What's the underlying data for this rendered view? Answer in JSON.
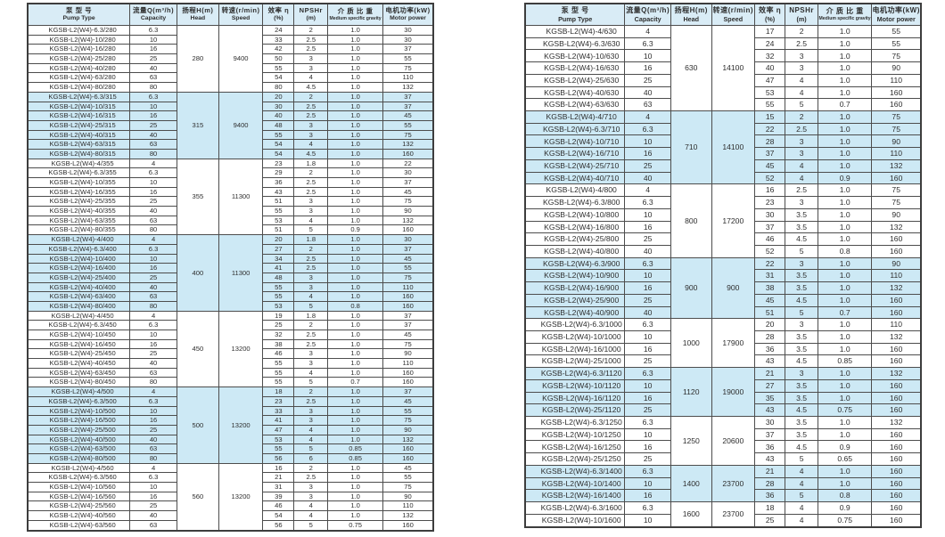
{
  "page": {
    "background": "#ffffff"
  },
  "colors": {
    "band_blue": "#cde9f5",
    "header_bg": "#d9ecf6",
    "border": "#4d4d4d",
    "text": "#2e2e2e"
  },
  "columns": [
    {
      "key": "pump_type",
      "zh": "泵 型 号",
      "en": "Pump Type"
    },
    {
      "key": "capacity",
      "zh": "流量Q(m³/h)",
      "en": "Capacity"
    },
    {
      "key": "head",
      "zh": "扬程H(m)",
      "en": "Head"
    },
    {
      "key": "speed",
      "zh": "转速(r/min)",
      "en": "Speed"
    },
    {
      "key": "efficiency",
      "zh": "效率 η",
      "en": "(%)"
    },
    {
      "key": "npshr",
      "zh": "NPSHr",
      "en": "(m)"
    },
    {
      "key": "gravity",
      "zh": "介 质 比 重",
      "en": "Medium specific gravity"
    },
    {
      "key": "power",
      "zh": "电机功率(kW)",
      "en": "Motor power"
    }
  ],
  "tables": [
    {
      "name": "left",
      "groups": [
        {
          "head": "280",
          "speed": "9400",
          "shaded": false,
          "rows": [
            [
              "KGSB-L2(W4)-6.3/280",
              "6.3",
              "24",
              "2",
              "1.0",
              "30"
            ],
            [
              "KGSB-L2(W4)-10/280",
              "10",
              "33",
              "2.5",
              "1.0",
              "30"
            ],
            [
              "KGSB-L2(W4)-16/280",
              "16",
              "42",
              "2.5",
              "1.0",
              "37"
            ],
            [
              "KGSB-L2(W4)-25/280",
              "25",
              "50",
              "3",
              "1.0",
              "55"
            ],
            [
              "KGSB-L2(W4)-40/280",
              "40",
              "55",
              "3",
              "1.0",
              "75"
            ],
            [
              "KGSB-L2(W4)-63/280",
              "63",
              "54",
              "4",
              "1.0",
              "110"
            ],
            [
              "KGSB-L2(W4)-80/280",
              "80",
              "80",
              "4.5",
              "1.0",
              "132"
            ]
          ]
        },
        {
          "head": "315",
          "speed": "9400",
          "shaded": true,
          "rows": [
            [
              "KGSB-L2(W4)-6.3/315",
              "6.3",
              "20",
              "2",
              "1.0",
              "37"
            ],
            [
              "KGSB-L2(W4)-10/315",
              "10",
              "30",
              "2.5",
              "1.0",
              "37"
            ],
            [
              "KGSB-L2(W4)-16/315",
              "16",
              "40",
              "2.5",
              "1.0",
              "45"
            ],
            [
              "KGSB-L2(W4)-25/315",
              "25",
              "48",
              "3",
              "1.0",
              "55"
            ],
            [
              "KGSB-L2(W4)-40/315",
              "40",
              "55",
              "3",
              "1.0",
              "75"
            ],
            [
              "KGSB-L2(W4)-63/315",
              "63",
              "54",
              "4",
              "1.0",
              "132"
            ],
            [
              "KGSB-L2(W4)-80/315",
              "80",
              "54",
              "4.5",
              "1.0",
              "160"
            ]
          ]
        },
        {
          "head": "355",
          "speed": "11300",
          "shaded": false,
          "rows": [
            [
              "KGSB-L2(W4)-4/355",
              "4",
              "23",
              "1.8",
              "1.0",
              "22"
            ],
            [
              "KGSB-L2(W4)-6.3/355",
              "6.3",
              "29",
              "2",
              "1.0",
              "30"
            ],
            [
              "KGSB-L2(W4)-10/355",
              "10",
              "36",
              "2.5",
              "1.0",
              "37"
            ],
            [
              "KGSB-L2(W4)-16/355",
              "16",
              "43",
              "2.5",
              "1.0",
              "45"
            ],
            [
              "KGSB-L2(W4)-25/355",
              "25",
              "51",
              "3",
              "1.0",
              "75"
            ],
            [
              "KGSB-L2(W4)-40/355",
              "40",
              "55",
              "3",
              "1.0",
              "90"
            ],
            [
              "KGSB-L2(W4)-63/355",
              "63",
              "53",
              "4",
              "1.0",
              "132"
            ],
            [
              "KGSB-L2(W4)-80/355",
              "80",
              "51",
              "5",
              "0.9",
              "160"
            ]
          ]
        },
        {
          "head": "400",
          "speed": "11300",
          "shaded": true,
          "rows": [
            [
              "KGSB-L2(W4)-4/400",
              "4",
              "20",
              "1.8",
              "1.0",
              "30"
            ],
            [
              "KGSB-L2(W4)-6.3/400",
              "6.3",
              "27",
              "2",
              "1.0",
              "37"
            ],
            [
              "KGSB-L2(W4)-10/400",
              "10",
              "34",
              "2.5",
              "1.0",
              "45"
            ],
            [
              "KGSB-L2(W4)-16/400",
              "16",
              "41",
              "2.5",
              "1.0",
              "55"
            ],
            [
              "KGSB-L2(W4)-25/400",
              "25",
              "48",
              "3",
              "1.0",
              "75"
            ],
            [
              "KGSB-L2(W4)-40/400",
              "40",
              "55",
              "3",
              "1.0",
              "110"
            ],
            [
              "KGSB-L2(W4)-63/400",
              "63",
              "55",
              "4",
              "1.0",
              "160"
            ],
            [
              "KGSB-L2(W4)-80/400",
              "80",
              "53",
              "5",
              "0.8",
              "160"
            ]
          ]
        },
        {
          "head": "450",
          "speed": "13200",
          "shaded": false,
          "rows": [
            [
              "KGSB-L2(W4)-4/450",
              "4",
              "19",
              "1.8",
              "1.0",
              "37"
            ],
            [
              "KGSB-L2(W4)-6.3/450",
              "6.3",
              "25",
              "2",
              "1.0",
              "37"
            ],
            [
              "KGSB-L2(W4)-10/450",
              "10",
              "32",
              "2.5",
              "1.0",
              "45"
            ],
            [
              "KGSB-L2(W4)-16/450",
              "16",
              "38",
              "2.5",
              "1.0",
              "75"
            ],
            [
              "KGSB-L2(W4)-25/450",
              "25",
              "46",
              "3",
              "1.0",
              "90"
            ],
            [
              "KGSB-L2(W4)-40/450",
              "40",
              "55",
              "3",
              "1.0",
              "110"
            ],
            [
              "KGSB-L2(W4)-63/450",
              "63",
              "55",
              "4",
              "1.0",
              "160"
            ],
            [
              "KGSB-L2(W4)-80/450",
              "80",
              "55",
              "5",
              "0.7",
              "160"
            ]
          ]
        },
        {
          "head": "500",
          "speed": "13200",
          "shaded": true,
          "rows": [
            [
              "KGSB-L2(W4)-4/500",
              "4",
              "18",
              "2",
              "1.0",
              "37"
            ],
            [
              "KGSB-L2(W4)-6.3/500",
              "6.3",
              "23",
              "2.5",
              "1.0",
              "45"
            ],
            [
              "KGSB-L2(W4)-10/500",
              "10",
              "33",
              "3",
              "1.0",
              "55"
            ],
            [
              "KGSB-L2(W4)-16/500",
              "16",
              "41",
              "3",
              "1.0",
              "75"
            ],
            [
              "KGSB-L2(W4)-25/500",
              "25",
              "47",
              "4",
              "1.0",
              "90"
            ],
            [
              "KGSB-L2(W4)-40/500",
              "40",
              "53",
              "4",
              "1.0",
              "132"
            ],
            [
              "KGSB-L2(W4)-63/500",
              "63",
              "55",
              "5",
              "0.85",
              "160"
            ],
            [
              "KGSB-L2(W4)-80/500",
              "80",
              "56",
              "6",
              "0.85",
              "160"
            ]
          ]
        },
        {
          "head": "560",
          "speed": "13200",
          "shaded": false,
          "rows": [
            [
              "KGSB-L2(W4)-4/560",
              "4",
              "16",
              "2",
              "1.0",
              "45"
            ],
            [
              "KGSB-L2(W4)-6.3/560",
              "6.3",
              "21",
              "2.5",
              "1.0",
              "55"
            ],
            [
              "KGSB-L2(W4)-10/560",
              "10",
              "31",
              "3",
              "1.0",
              "75"
            ],
            [
              "KGSB-L2(W4)-16/560",
              "16",
              "39",
              "3",
              "1.0",
              "90"
            ],
            [
              "KGSB-L2(W4)-25/560",
              "25",
              "46",
              "4",
              "1.0",
              "110"
            ],
            [
              "KGSB-L2(W4)-40/560",
              "40",
              "54",
              "4",
              "1.0",
              "132"
            ],
            [
              "KGSB-L2(W4)-63/560",
              "63",
              "56",
              "5",
              "0.75",
              "160"
            ]
          ]
        }
      ]
    },
    {
      "name": "right",
      "groups": [
        {
          "head": "630",
          "speed": "14100",
          "shaded": false,
          "rows": [
            [
              "KGSB-L2(W4)-4/630",
              "4",
              "17",
              "2",
              "1.0",
              "55"
            ],
            [
              "KGSB-L2(W4)-6.3/630",
              "6.3",
              "24",
              "2.5",
              "1.0",
              "55"
            ],
            [
              "KGSB-L2(W4)-10/630",
              "10",
              "32",
              "3",
              "1.0",
              "75"
            ],
            [
              "KGSB-L2(W4)-16/630",
              "16",
              "40",
              "3",
              "1.0",
              "90"
            ],
            [
              "KGSB-L2(W4)-25/630",
              "25",
              "47",
              "4",
              "1.0",
              "110"
            ],
            [
              "KGSB-L2(W4)-40/630",
              "40",
              "53",
              "4",
              "1.0",
              "160"
            ],
            [
              "KGSB-L2(W4)-63/630",
              "63",
              "55",
              "5",
              "0.7",
              "160"
            ]
          ]
        },
        {
          "head": "710",
          "speed": "14100",
          "shaded": true,
          "rows": [
            [
              "KGSB-L2(W4)-4/710",
              "4",
              "15",
              "2",
              "1.0",
              "75"
            ],
            [
              "KGSB-L2(W4)-6.3/710",
              "6.3",
              "22",
              "2.5",
              "1.0",
              "75"
            ],
            [
              "KGSB-L2(W4)-10/710",
              "10",
              "28",
              "3",
              "1.0",
              "90"
            ],
            [
              "KGSB-L2(W4)-16/710",
              "16",
              "37",
              "3",
              "1.0",
              "110"
            ],
            [
              "KGSB-L2(W4)-25/710",
              "25",
              "45",
              "4",
              "1.0",
              "132"
            ],
            [
              "KGSB-L2(W4)-40/710",
              "40",
              "52",
              "4",
              "0.9",
              "160"
            ]
          ]
        },
        {
          "head": "800",
          "speed": "17200",
          "shaded": false,
          "rows": [
            [
              "KGSB-L2(W4)-4/800",
              "4",
              "16",
              "2.5",
              "1.0",
              "75"
            ],
            [
              "KGSB-L2(W4)-6.3/800",
              "6.3",
              "23",
              "3",
              "1.0",
              "75"
            ],
            [
              "KGSB-L2(W4)-10/800",
              "10",
              "30",
              "3.5",
              "1.0",
              "90"
            ],
            [
              "KGSB-L2(W4)-16/800",
              "16",
              "37",
              "3.5",
              "1.0",
              "132"
            ],
            [
              "KGSB-L2(W4)-25/800",
              "25",
              "46",
              "4.5",
              "1.0",
              "160"
            ],
            [
              "KGSB-L2(W4)-40/800",
              "40",
              "52",
              "5",
              "0.8",
              "160"
            ]
          ]
        },
        {
          "head": "900",
          "speed": "900",
          "shaded": true,
          "rows": [
            [
              "KGSB-L2(W4)-6.3/900",
              "6.3",
              "22",
              "3",
              "1.0",
              "90"
            ],
            [
              "KGSB-L2(W4)-10/900",
              "10",
              "31",
              "3.5",
              "1.0",
              "110"
            ],
            [
              "KGSB-L2(W4)-16/900",
              "16",
              "38",
              "3.5",
              "1.0",
              "132"
            ],
            [
              "KGSB-L2(W4)-25/900",
              "25",
              "45",
              "4.5",
              "1.0",
              "160"
            ],
            [
              "KGSB-L2(W4)-40/900",
              "40",
              "51",
              "5",
              "0.7",
              "160"
            ]
          ]
        },
        {
          "head": "1000",
          "speed": "17900",
          "shaded": false,
          "rows": [
            [
              "KGSB-L2(W4)-6.3/1000",
              "6.3",
              "20",
              "3",
              "1.0",
              "110"
            ],
            [
              "KGSB-L2(W4)-10/1000",
              "10",
              "28",
              "3.5",
              "1.0",
              "132"
            ],
            [
              "KGSB-L2(W4)-16/1000",
              "16",
              "36",
              "3.5",
              "1.0",
              "160"
            ],
            [
              "KGSB-L2(W4)-25/1000",
              "25",
              "43",
              "4.5",
              "0.85",
              "160"
            ]
          ]
        },
        {
          "head": "1120",
          "speed": "19000",
          "shaded": true,
          "rows": [
            [
              "KGSB-L2(W4)-6.3/1120",
              "6.3",
              "21",
              "3",
              "1.0",
              "132"
            ],
            [
              "KGSB-L2(W4)-10/1120",
              "10",
              "27",
              "3.5",
              "1.0",
              "160"
            ],
            [
              "KGSB-L2(W4)-16/1120",
              "16",
              "35",
              "3.5",
              "1.0",
              "160"
            ],
            [
              "KGSB-L2(W4)-25/1120",
              "25",
              "43",
              "4.5",
              "0.75",
              "160"
            ]
          ]
        },
        {
          "head": "1250",
          "speed": "20600",
          "shaded": false,
          "rows": [
            [
              "KGSB-L2(W4)-6.3/1250",
              "6.3",
              "30",
              "3.5",
              "1.0",
              "132"
            ],
            [
              "KGSB-L2(W4)-10/1250",
              "10",
              "37",
              "3.5",
              "1.0",
              "160"
            ],
            [
              "KGSB-L2(W4)-16/1250",
              "16",
              "36",
              "4.5",
              "0.9",
              "160"
            ],
            [
              "KGSB-L2(W4)-25/1250",
              "25",
              "43",
              "5",
              "0.65",
              "160"
            ]
          ]
        },
        {
          "head": "1400",
          "speed": "23700",
          "shaded": true,
          "rows": [
            [
              "KGSB-L2(W4)-6.3/1400",
              "6.3",
              "21",
              "4",
              "1.0",
              "160"
            ],
            [
              "KGSB-L2(W4)-10/1400",
              "10",
              "28",
              "4",
              "1.0",
              "160"
            ],
            [
              "KGSB-L2(W4)-16/1400",
              "16",
              "36",
              "5",
              "0.8",
              "160"
            ]
          ]
        },
        {
          "head": "1600",
          "speed": "23700",
          "shaded": false,
          "rows": [
            [
              "KGSB-L2(W4)-6.3/1600",
              "6.3",
              "18",
              "4",
              "0.9",
              "160"
            ],
            [
              "KGSB-L2(W4)-10/1600",
              "10",
              "25",
              "4",
              "0.75",
              "160"
            ]
          ]
        }
      ]
    }
  ]
}
